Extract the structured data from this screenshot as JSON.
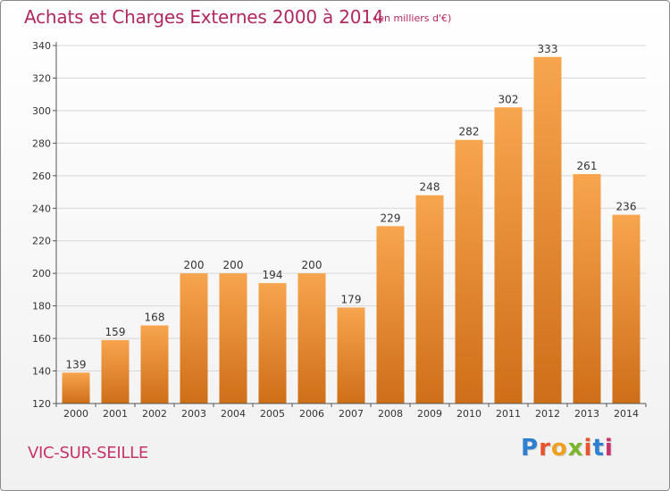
{
  "header": {
    "title": "Achats et Charges Externes 2000 à 2014",
    "unit": "(en milliers d'€)"
  },
  "footer": {
    "place": "VIC-SUR-SEILLE",
    "logo_text": "Proxiti",
    "logo_colors": [
      "#2e7fd0",
      "#e8542e",
      "#f0a020",
      "#7bb52a",
      "#e8542e",
      "#2e7fd0",
      "#c8346a"
    ]
  },
  "colors": {
    "title": "#b02860",
    "bar_light": "#f7a54e",
    "bar_dark": "#cf6e18",
    "grid": "#d8d8d8",
    "axis": "#555555"
  },
  "chart_data": {
    "type": "bar",
    "categories": [
      "2000",
      "2001",
      "2002",
      "2003",
      "2004",
      "2005",
      "2006",
      "2007",
      "2008",
      "2009",
      "2010",
      "2011",
      "2012",
      "2013",
      "2014"
    ],
    "values": [
      139,
      159,
      168,
      200,
      200,
      194,
      200,
      179,
      229,
      248,
      282,
      302,
      333,
      261,
      236
    ],
    "title": "Achats et Charges Externes 2000 à 2014",
    "xlabel": "",
    "ylabel": "",
    "ylim": [
      120,
      340
    ],
    "yticks": [
      120,
      140,
      160,
      180,
      200,
      220,
      240,
      260,
      280,
      300,
      320,
      340
    ],
    "grid": true,
    "legend": "none"
  }
}
